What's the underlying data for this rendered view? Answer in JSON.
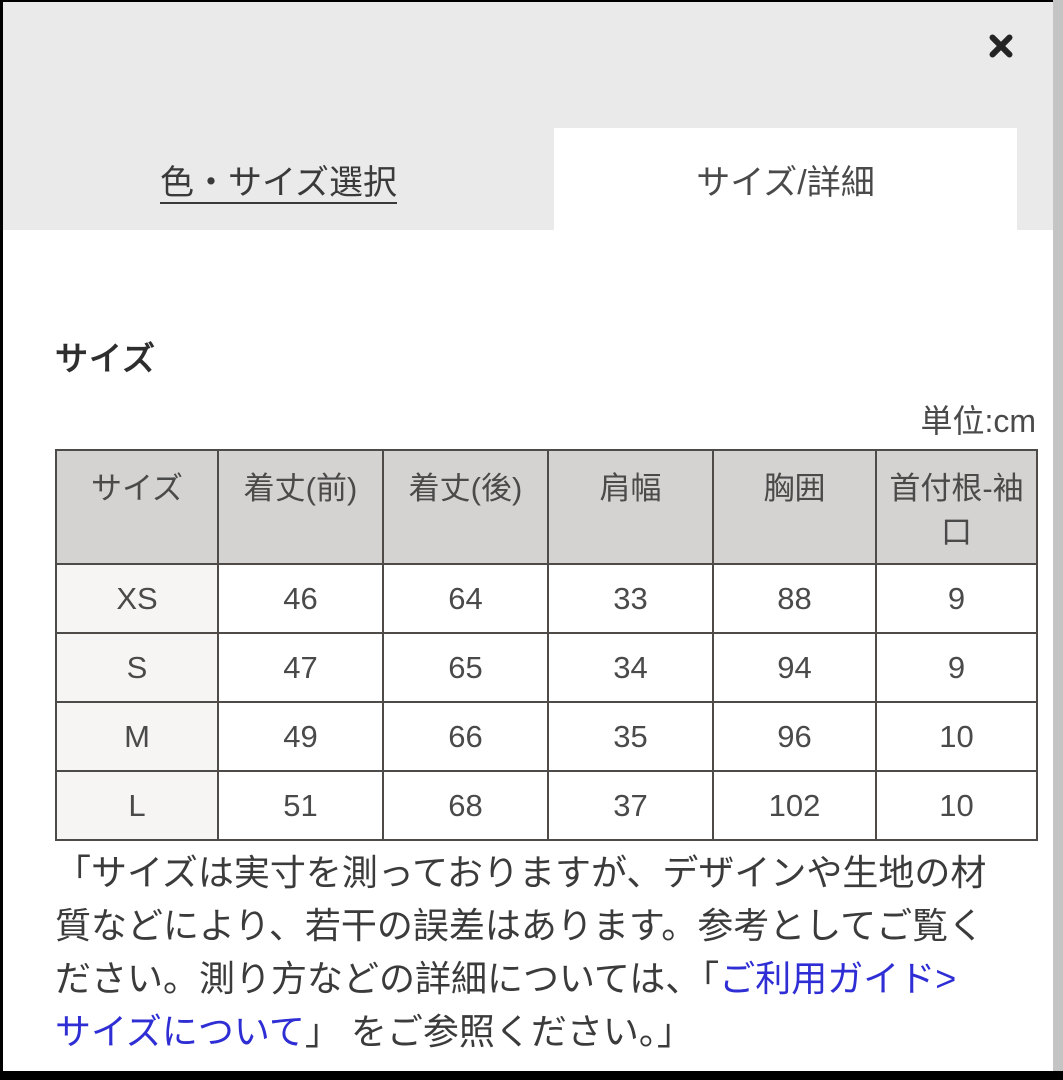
{
  "modal": {
    "tabs": [
      {
        "label": "色・サイズ選択",
        "active": false
      },
      {
        "label": "サイズ/詳細",
        "active": true
      }
    ],
    "close_icon": "x-close",
    "section": {
      "title": "サイズ",
      "unit_label": "単位:cm"
    },
    "table": {
      "headers": [
        "サイズ",
        "着丈(前)",
        "着丈(後)",
        "肩幅",
        "胸囲",
        "首付根-袖口"
      ],
      "rows": [
        {
          "size": "XS",
          "values": [
            "46",
            "64",
            "33",
            "88",
            "9"
          ]
        },
        {
          "size": "S",
          "values": [
            "47",
            "65",
            "34",
            "94",
            "9"
          ]
        },
        {
          "size": "M",
          "values": [
            "49",
            "66",
            "35",
            "96",
            "10"
          ]
        },
        {
          "size": "L",
          "values": [
            "51",
            "68",
            "37",
            "102",
            "10"
          ]
        }
      ]
    },
    "note": {
      "line1": "「サイズは実寸を測っておりますが、デザインや生地の材",
      "line2": "質などにより、若干の誤差はあります。参考としてご覧く",
      "line3_text": "ださい。測り方などの詳細については、「",
      "link_part1": "ご利用ガイド>",
      "link_part2": "サイズについて",
      "line4_text": "」 をご参照ください。」"
    },
    "colors": {
      "link_blue": "#2e2ed4",
      "header_background": "#ebeaea",
      "table_header_cell": "#d5d3d2",
      "table_size_column": "#f6f5f4",
      "table_border": "#4e4a47",
      "right_strip": "#c5c4c4"
    }
  }
}
